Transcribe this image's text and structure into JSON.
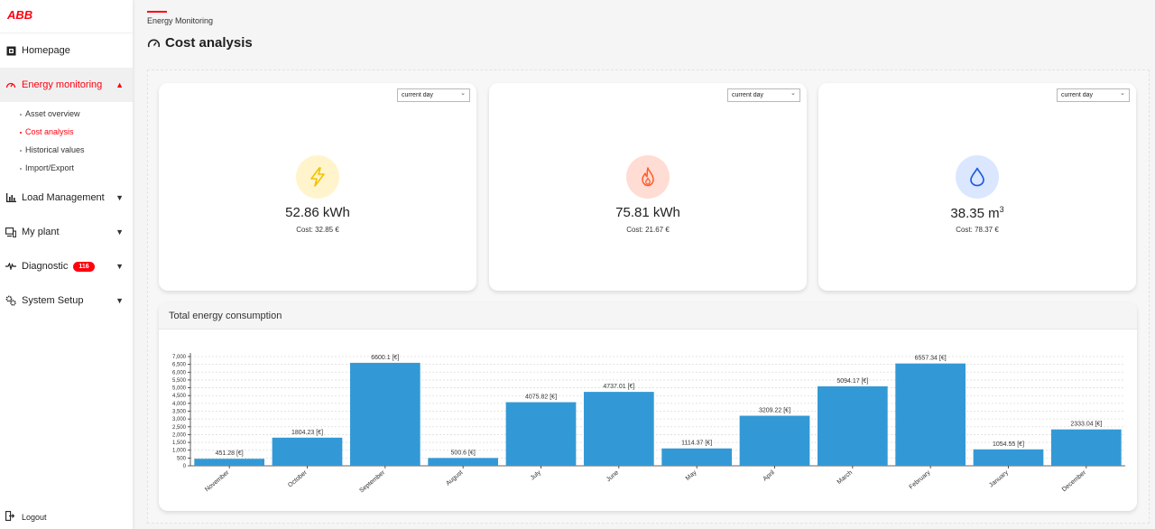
{
  "brand": {
    "logo": "ABB",
    "accent": "#ff000f"
  },
  "sidebar": {
    "items": [
      {
        "label": "Homepage",
        "icon": "home-icon"
      },
      {
        "label": "Energy monitoring",
        "icon": "gauge-icon",
        "active": true
      },
      {
        "label": "Load Management",
        "icon": "bar-chart-icon"
      },
      {
        "label": "My plant",
        "icon": "plant-icon"
      },
      {
        "label": "Diagnostic",
        "icon": "pulse-icon",
        "badge": "116"
      },
      {
        "label": "System Setup",
        "icon": "gears-icon"
      }
    ],
    "subitems": [
      {
        "label": "Asset overview"
      },
      {
        "label": "Cost analysis",
        "active": true
      },
      {
        "label": "Historical values"
      },
      {
        "label": "Import/Export"
      }
    ],
    "logout": "Logout"
  },
  "header": {
    "breadcrumb": "Energy Monitoring",
    "title": "Cost analysis"
  },
  "cards": [
    {
      "period": "current day",
      "value": "52.86 kWh",
      "cost": "Cost: 32.85 €",
      "icon": "lightning-icon",
      "circle_color": "#fff4cc",
      "icon_color": "#f2c200"
    },
    {
      "period": "current day",
      "value": "75.81 kWh",
      "cost": "Cost: 21.67 €",
      "icon": "flame-icon",
      "circle_color": "#ffdcd4",
      "icon_color": "#ff5a2a"
    },
    {
      "period": "current day",
      "value_main": "38.35 m",
      "value_sup": "3",
      "cost": "Cost: 78.37 €",
      "icon": "water-drop-icon",
      "circle_color": "#dbe6ff",
      "icon_color": "#1f5de0"
    }
  ],
  "period_options": [
    "current day"
  ],
  "chart_section": {
    "title": "Total energy consumption"
  },
  "chart_data": {
    "type": "bar",
    "categories": [
      "November",
      "October",
      "September",
      "August",
      "July",
      "June",
      "May",
      "April",
      "March",
      "February",
      "January",
      "December"
    ],
    "values": [
      451.28,
      1804.23,
      6600.1,
      500.6,
      4075.82,
      4737.01,
      1114.37,
      3209.22,
      5094.17,
      6557.34,
      1054.55,
      2333.04
    ],
    "data_labels": [
      "451.28 [€]",
      "1804.23 [€]",
      "6600.1 [€]",
      "500.6 [€]",
      "4075.82 [€]",
      "4737.01 [€]",
      "1114.37 [€]",
      "3209.22 [€]",
      "5094.17 [€]",
      "6557.34 [€]",
      "1054.55 [€]",
      "2333.04 [€]"
    ],
    "y_ticks": [
      0,
      500,
      1000,
      1500,
      2000,
      2500,
      3000,
      3500,
      4000,
      4500,
      5000,
      5500,
      6000,
      6500,
      7000
    ],
    "y_tick_labels": [
      "0",
      "500",
      "1,000",
      "1,500",
      "2,000",
      "2,500",
      "3,000",
      "3,500",
      "4,000",
      "4,500",
      "5,000",
      "5,500",
      "6,000",
      "6,500",
      "7,000"
    ],
    "ylim": [
      0,
      7000
    ],
    "grid": true,
    "bar_color": "#3399d6"
  }
}
